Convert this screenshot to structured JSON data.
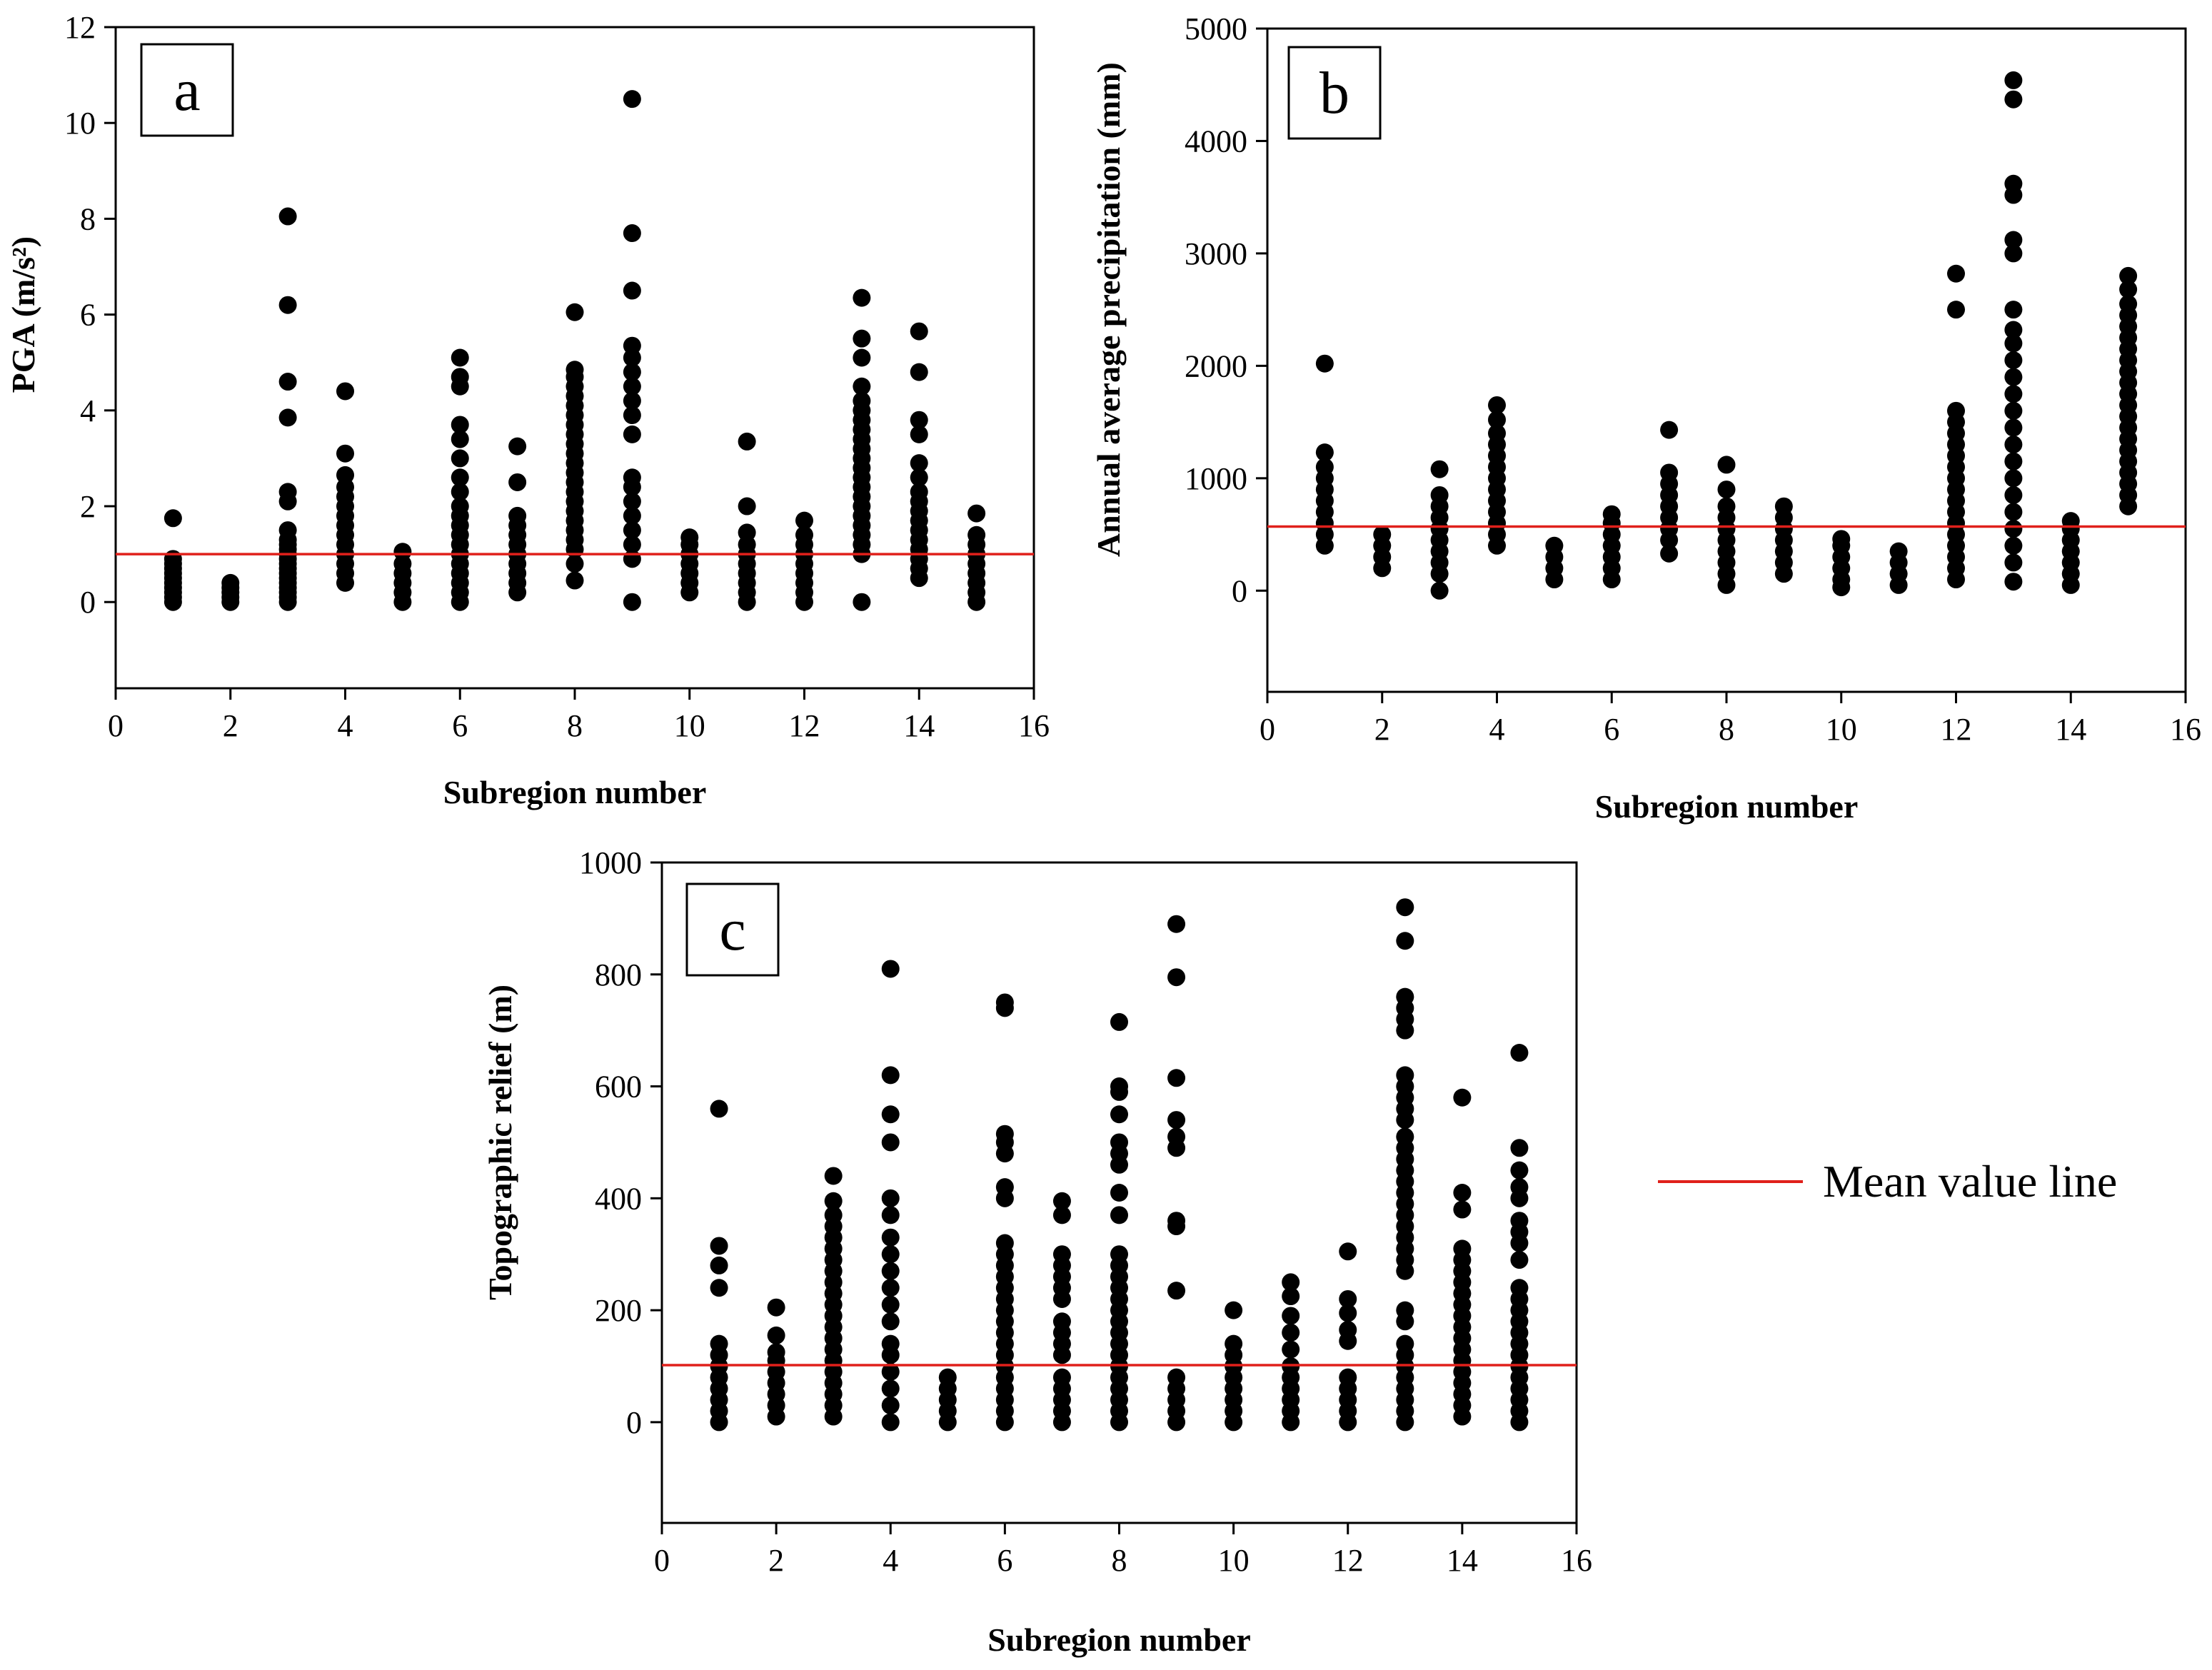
{
  "legend": {
    "label": "Mean value line",
    "color": "#e0201b"
  },
  "colors": {
    "points": "#000000",
    "mean_line": "#e0201b"
  },
  "chart_data": [
    {
      "panel": "a",
      "type": "scatter",
      "xlabel": "Subregion number",
      "ylabel": "PGA (m/s²)",
      "xlim": [
        0,
        16
      ],
      "ylim": [
        -1.8,
        12
      ],
      "xticks": [
        0,
        2,
        4,
        6,
        8,
        10,
        12,
        14,
        16
      ],
      "yticks": [
        0,
        2,
        4,
        6,
        8,
        10,
        12
      ],
      "mean_value": 1.0,
      "points": {
        "1": [
          0,
          0.1,
          0.2,
          0.3,
          0.4,
          0.5,
          0.6,
          0.7,
          0.8,
          0.9,
          1.75
        ],
        "2": [
          0,
          0.1,
          0.2,
          0.3,
          0.4
        ],
        "3": [
          0,
          0.1,
          0.2,
          0.3,
          0.4,
          0.5,
          0.6,
          0.7,
          0.8,
          0.9,
          1.0,
          1.1,
          1.2,
          1.3,
          1.5,
          2.1,
          2.3,
          3.85,
          4.6,
          6.2,
          8.05
        ],
        "4": [
          0.4,
          0.6,
          0.8,
          1.0,
          1.2,
          1.4,
          1.6,
          1.8,
          2.0,
          2.2,
          2.4,
          2.65,
          3.1,
          4.4
        ],
        "5": [
          0,
          0.2,
          0.4,
          0.6,
          0.8,
          1.05
        ],
        "6": [
          0,
          0.2,
          0.4,
          0.6,
          0.8,
          1.0,
          1.2,
          1.4,
          1.6,
          1.8,
          2.0,
          2.3,
          2.6,
          3.0,
          3.4,
          3.7,
          4.5,
          4.7,
          5.1
        ],
        "7": [
          0.2,
          0.4,
          0.6,
          0.8,
          1.0,
          1.2,
          1.4,
          1.6,
          1.8,
          2.5,
          3.25
        ],
        "8": [
          0.45,
          0.8,
          1.1,
          1.3,
          1.5,
          1.7,
          1.9,
          2.1,
          2.3,
          2.5,
          2.7,
          2.9,
          3.1,
          3.3,
          3.5,
          3.7,
          3.9,
          4.1,
          4.3,
          4.5,
          4.7,
          4.85,
          6.05
        ],
        "9": [
          0,
          0.9,
          1.2,
          1.5,
          1.8,
          2.1,
          2.4,
          2.6,
          3.5,
          3.9,
          4.2,
          4.5,
          4.8,
          5.1,
          5.35,
          6.5,
          7.7,
          10.5
        ],
        "10": [
          0.2,
          0.4,
          0.6,
          0.8,
          1.0,
          1.2,
          1.35
        ],
        "11": [
          0,
          0.2,
          0.4,
          0.6,
          0.8,
          1.0,
          1.2,
          1.45,
          2.0,
          3.35
        ],
        "12": [
          0,
          0.2,
          0.4,
          0.6,
          0.8,
          1.0,
          1.2,
          1.4,
          1.7
        ],
        "13": [
          0,
          1.0,
          1.2,
          1.4,
          1.6,
          1.8,
          2.0,
          2.2,
          2.4,
          2.6,
          2.8,
          3.0,
          3.2,
          3.4,
          3.6,
          3.8,
          4.0,
          4.2,
          4.5,
          5.1,
          5.5,
          6.35
        ],
        "14": [
          0.5,
          0.7,
          0.9,
          1.1,
          1.3,
          1.5,
          1.7,
          1.9,
          2.1,
          2.3,
          2.6,
          2.9,
          3.5,
          3.8,
          4.8,
          5.65
        ],
        "15": [
          0,
          0.2,
          0.4,
          0.6,
          0.8,
          1.0,
          1.2,
          1.4,
          1.85
        ]
      }
    },
    {
      "panel": "b",
      "type": "scatter",
      "xlabel": "Subregion number",
      "ylabel": "Annual average precipitation (mm)",
      "xlim": [
        0,
        16
      ],
      "ylim": [
        -900,
        5000
      ],
      "xticks": [
        0,
        2,
        4,
        6,
        8,
        10,
        12,
        14,
        16
      ],
      "yticks": [
        0,
        1000,
        2000,
        3000,
        4000,
        5000
      ],
      "mean_value": 570,
      "points": {
        "1": [
          400,
          500,
          600,
          700,
          800,
          900,
          1000,
          1100,
          1230,
          2020
        ],
        "2": [
          200,
          300,
          400,
          500
        ],
        "3": [
          0,
          150,
          250,
          350,
          450,
          550,
          650,
          750,
          850,
          1080
        ],
        "4": [
          400,
          500,
          600,
          700,
          800,
          900,
          1000,
          1100,
          1200,
          1300,
          1400,
          1520,
          1650
        ],
        "5": [
          100,
          200,
          300,
          400
        ],
        "6": [
          100,
          200,
          300,
          400,
          500,
          600,
          680
        ],
        "7": [
          330,
          450,
          550,
          650,
          750,
          850,
          950,
          1050,
          1430
        ],
        "8": [
          50,
          150,
          250,
          350,
          450,
          550,
          650,
          750,
          900,
          1120
        ],
        "9": [
          150,
          250,
          350,
          450,
          550,
          650,
          750
        ],
        "10": [
          30,
          100,
          200,
          300,
          400,
          460
        ],
        "11": [
          50,
          150,
          250,
          350
        ],
        "12": [
          100,
          200,
          300,
          400,
          500,
          600,
          700,
          800,
          900,
          1000,
          1100,
          1200,
          1300,
          1400,
          1500,
          1600,
          2500,
          2820
        ],
        "13": [
          80,
          250,
          400,
          550,
          700,
          850,
          1000,
          1150,
          1300,
          1450,
          1600,
          1750,
          1900,
          2050,
          2200,
          2320,
          2500,
          3000,
          3120,
          3520,
          3620,
          4370,
          4540
        ],
        "14": [
          50,
          150,
          250,
          350,
          450,
          550,
          620
        ],
        "15": [
          750,
          850,
          950,
          1050,
          1150,
          1250,
          1350,
          1450,
          1550,
          1650,
          1750,
          1850,
          1950,
          2050,
          2150,
          2250,
          2350,
          2450,
          2550,
          2680,
          2800
        ]
      }
    },
    {
      "panel": "c",
      "type": "scatter",
      "xlabel": "Subregion number",
      "ylabel": "Topographic relief (m)",
      "xlim": [
        0,
        16
      ],
      "ylim": [
        -180,
        1000
      ],
      "xticks": [
        0,
        2,
        4,
        6,
        8,
        10,
        12,
        14,
        16
      ],
      "yticks": [
        0,
        200,
        400,
        600,
        800,
        1000
      ],
      "mean_value": 102,
      "points": {
        "1": [
          0,
          20,
          40,
          60,
          80,
          100,
          120,
          140,
          240,
          280,
          315,
          560
        ],
        "2": [
          10,
          30,
          50,
          70,
          90,
          110,
          125,
          155,
          205
        ],
        "3": [
          10,
          30,
          50,
          70,
          90,
          110,
          130,
          150,
          170,
          190,
          210,
          230,
          250,
          270,
          290,
          310,
          330,
          350,
          370,
          395,
          440
        ],
        "4": [
          0,
          30,
          60,
          90,
          120,
          140,
          180,
          210,
          240,
          270,
          300,
          330,
          370,
          400,
          500,
          550,
          620,
          810
        ],
        "5": [
          0,
          20,
          40,
          60,
          80
        ],
        "6": [
          0,
          20,
          40,
          60,
          80,
          100,
          120,
          140,
          160,
          180,
          200,
          220,
          240,
          260,
          280,
          300,
          320,
          400,
          420,
          480,
          500,
          515,
          740,
          750
        ],
        "7": [
          0,
          20,
          40,
          60,
          80,
          120,
          140,
          160,
          180,
          220,
          240,
          260,
          280,
          300,
          370,
          395
        ],
        "8": [
          0,
          20,
          40,
          60,
          80,
          100,
          120,
          140,
          160,
          180,
          200,
          220,
          240,
          260,
          280,
          300,
          370,
          410,
          460,
          480,
          500,
          550,
          590,
          600,
          715
        ],
        "9": [
          0,
          20,
          40,
          60,
          80,
          235,
          350,
          360,
          490,
          510,
          540,
          615,
          795,
          890
        ],
        "10": [
          0,
          20,
          40,
          60,
          80,
          100,
          120,
          140,
          200
        ],
        "11": [
          0,
          20,
          40,
          60,
          80,
          100,
          130,
          160,
          190,
          225,
          250
        ],
        "12": [
          0,
          20,
          40,
          60,
          80,
          145,
          165,
          195,
          220,
          305
        ],
        "13": [
          0,
          20,
          40,
          60,
          80,
          100,
          120,
          140,
          180,
          200,
          270,
          290,
          310,
          330,
          350,
          370,
          390,
          410,
          430,
          450,
          470,
          490,
          510,
          540,
          560,
          580,
          600,
          620,
          700,
          720,
          740,
          760,
          860,
          920
        ],
        "14": [
          10,
          30,
          50,
          70,
          90,
          110,
          130,
          150,
          170,
          190,
          210,
          230,
          250,
          270,
          290,
          310,
          380,
          410,
          580
        ],
        "15": [
          0,
          20,
          40,
          60,
          80,
          100,
          120,
          140,
          160,
          180,
          200,
          220,
          240,
          290,
          320,
          340,
          360,
          400,
          420,
          450,
          490,
          660
        ]
      }
    }
  ]
}
